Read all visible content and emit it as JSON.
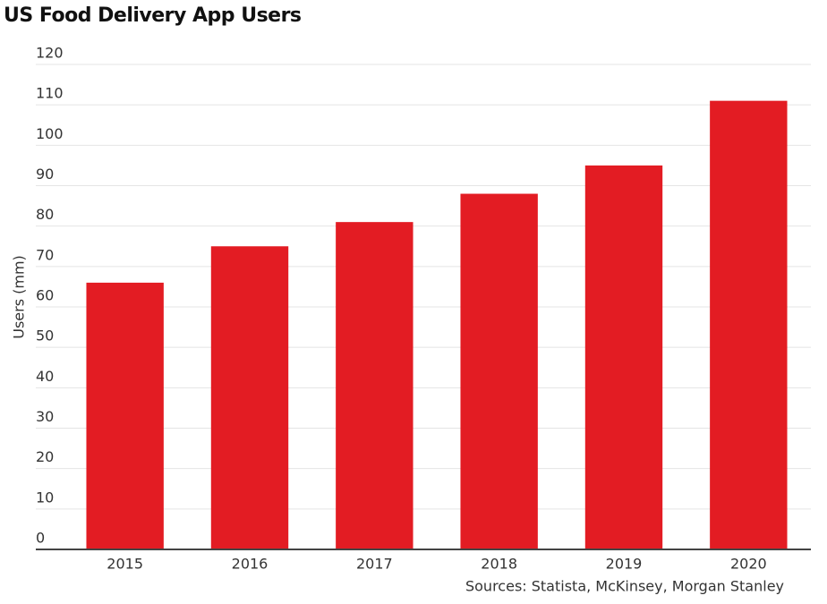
{
  "chart_data": {
    "type": "bar",
    "title": "US Food Delivery App Users",
    "y_label": "Users (mm)",
    "source": "Sources: Statista, McKinsey, Morgan Stanley",
    "categories": [
      "2015",
      "2016",
      "2017",
      "2018",
      "2019",
      "2020"
    ],
    "values": [
      66,
      75,
      81,
      88,
      95,
      111
    ],
    "color": "#e31c23",
    "ylim": [
      0,
      120
    ],
    "yticks": [
      0,
      10,
      20,
      30,
      40,
      50,
      60,
      70,
      80,
      90,
      100,
      110,
      120
    ],
    "grid": true
  }
}
